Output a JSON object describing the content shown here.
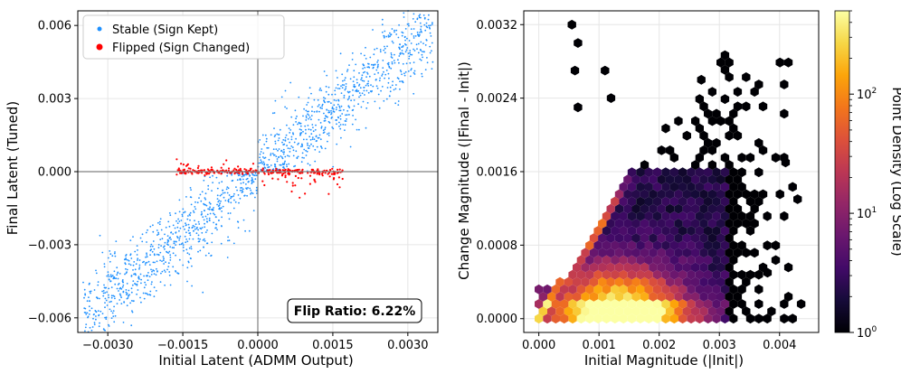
{
  "chart_data": [
    {
      "type": "scatter",
      "xlabel": "Initial Latent (ADMM Output)",
      "ylabel": "Final Latent (Tuned)",
      "xlim": [
        -0.0036,
        0.0036
      ],
      "ylim": [
        -0.0066,
        0.0066
      ],
      "xticks": [
        -0.003,
        -0.0015,
        0.0,
        0.0015,
        0.003
      ],
      "xtick_labels": [
        "−0.0030",
        "−0.0015",
        "0.0000",
        "0.0015",
        "0.0030"
      ],
      "yticks": [
        -0.006,
        -0.003,
        0.0,
        0.003,
        0.006
      ],
      "ytick_labels": [
        "−0.006",
        "−0.003",
        "0.000",
        "0.003",
        "0.006"
      ],
      "grid": true,
      "legend_position": "top-left",
      "series": [
        {
          "name": "Stable (Sign Kept)",
          "color": "#1e90ff",
          "distribution": {
            "slope": 1.7,
            "y_sd": 0.0008,
            "x_range": [
              -0.0035,
              0.0035
            ],
            "n_points": 1500
          }
        },
        {
          "name": "Flipped (Sign Changed)",
          "color": "#ff0000",
          "distribution": {
            "x_range": [
              -0.0017,
              0.0017
            ],
            "y_sd": 6e-05,
            "n_points": 300
          }
        }
      ],
      "annotation": "Flip Ratio: 6.22%"
    },
    {
      "type": "heatmap",
      "subtype": "hexbin",
      "xlabel": "Initial Magnitude (|Init|)",
      "ylabel": "Change Magnitude (|Final - Init|)",
      "xlim": [
        -0.00025,
        0.00465
      ],
      "ylim": [
        -0.00015,
        0.00335
      ],
      "xticks": [
        0.0,
        0.001,
        0.002,
        0.003,
        0.004
      ],
      "xtick_labels": [
        "0.000",
        "0.001",
        "0.002",
        "0.003",
        "0.004"
      ],
      "yticks": [
        0.0,
        0.0008,
        0.0016,
        0.0024,
        0.0032
      ],
      "ytick_labels": [
        "0.0000",
        "0.0008",
        "0.0016",
        "0.0024",
        "0.0032"
      ],
      "grid": true,
      "colormap": "inferno",
      "colorbar": {
        "label": "Point Density (Log Scale)",
        "scale": "log",
        "range": [
          1,
          500
        ],
        "ticks": [
          1,
          10,
          100
        ],
        "tick_labels": [
          "10",
          "10",
          "10"
        ],
        "tick_exponents": [
          "0",
          "1",
          "2"
        ]
      }
    }
  ]
}
